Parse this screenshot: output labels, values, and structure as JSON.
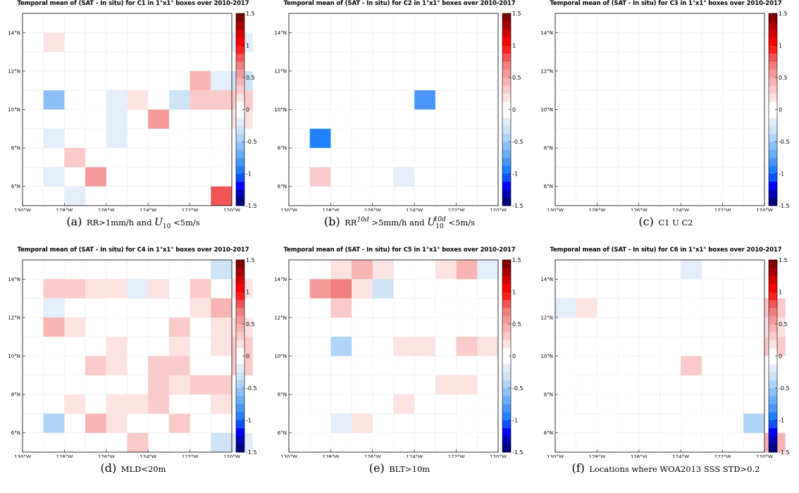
{
  "colorbar": {
    "ticks": [
      "1.5",
      "1",
      "0.5",
      "0",
      "-0.5",
      "-1",
      "-1.5"
    ],
    "range": [
      -1.5,
      1.5
    ],
    "colors_neg": [
      "#00007f",
      "#0000b3",
      "#0000ff",
      "#1050ff",
      "#2080ff",
      "#4a96f7",
      "#6aaef7",
      "#8cc0f7",
      "#b0d4f7",
      "#cfe3f7",
      "#e3eefa",
      "#ffffff"
    ],
    "colors_pos": [
      "#ffffff",
      "#fde2e2",
      "#fbcaca",
      "#f8b3b3",
      "#f59a9a",
      "#f27f7f",
      "#f05555",
      "#ff2020",
      "#ff0000",
      "#d40000",
      "#a80000",
      "#800000"
    ]
  },
  "chart_data": [
    {
      "type": "heatmap",
      "title": "Temporal mean of (SAT - In situ) for C1 in 1°x1° boxes over 2010-2017",
      "caption_label": "(a)",
      "caption_text": "RR>1mm/h and U10 <5m/s",
      "xticks": [
        "130°W",
        "128°W",
        "126°W",
        "124°W",
        "122°W",
        "120°W"
      ],
      "yticks": [
        "14°N",
        "12°N",
        "10°N",
        "8°N",
        "6°N"
      ],
      "xlim": [
        -130,
        -120
      ],
      "ylim": [
        5,
        15
      ],
      "cells": [
        [
          -129,
          13,
          0.15
        ],
        [
          -120,
          13,
          -0.15
        ],
        [
          -122,
          11,
          0.45
        ],
        [
          -121,
          11,
          -0.15
        ],
        [
          -120,
          11,
          -0.35
        ],
        [
          -129,
          10,
          -0.55
        ],
        [
          -126,
          10,
          -0.15
        ],
        [
          -125,
          10,
          0.15
        ],
        [
          -124,
          10,
          -0.1
        ],
        [
          -123,
          10,
          -0.35
        ],
        [
          -122,
          10,
          0.3
        ],
        [
          -121,
          10,
          0.3
        ],
        [
          -120,
          10,
          0.3
        ],
        [
          -127,
          9,
          -0.1
        ],
        [
          -126,
          9,
          -0.25
        ],
        [
          -124,
          9,
          0.5
        ],
        [
          -120,
          9,
          0.15
        ],
        [
          -129,
          8,
          -0.15
        ],
        [
          -126,
          8,
          -0.25
        ],
        [
          -123,
          8,
          -0.1
        ],
        [
          -128,
          7,
          0.3
        ],
        [
          -126,
          7,
          -0.1
        ],
        [
          -121,
          7,
          -0.1
        ],
        [
          -129,
          6,
          -0.15
        ],
        [
          -127,
          6,
          0.6
        ],
        [
          -128,
          5,
          -0.15
        ],
        [
          -121,
          5,
          0.85
        ]
      ]
    },
    {
      "type": "heatmap",
      "title": "Temporal mean of (SAT - In situ) for C2 in 1°x1° boxes over 2010-2017",
      "caption_label": "(b)",
      "caption_text": "RR10d >5mm/h and U1010d <5m/s",
      "xticks": [
        "130°W",
        "128°W",
        "126°W",
        "124°W",
        "122°W",
        "120°W"
      ],
      "yticks": [
        "14°N",
        "12°N",
        "10°N",
        "8°N",
        "6°N"
      ],
      "xlim": [
        -130,
        -120
      ],
      "ylim": [
        5,
        15
      ],
      "cells": [
        [
          -124,
          10,
          -0.8
        ],
        [
          -128,
          9,
          -0.1
        ],
        [
          -129,
          8,
          -1.0
        ],
        [
          -129,
          6,
          0.25
        ],
        [
          -125,
          6,
          -0.15
        ],
        [
          -127,
          5,
          0.12
        ]
      ]
    },
    {
      "type": "heatmap",
      "title": "Temporal mean of (SAT - In situ) for C3 in 1°x1° boxes over 2010-2017",
      "caption_label": "(c)",
      "caption_text": "C1 U C2",
      "xticks": [
        "130°W",
        "128°W",
        "126°W",
        "124°W",
        "122°W",
        "120°W"
      ],
      "yticks": [
        "14°N",
        "12°N",
        "10°N",
        "8°N",
        "6°N"
      ],
      "xlim": [
        -130,
        -120
      ],
      "ylim": [
        5,
        15
      ],
      "cells": []
    },
    {
      "type": "heatmap",
      "title": "Temporal mean of (SAT - In situ) for C4 in 1°x1° boxes over 2010-2017",
      "caption_label": "(d)",
      "caption_text": "MLD<20m",
      "xticks": [
        "130°W",
        "128°W",
        "126°W",
        "124°W",
        "122°W",
        "120°W"
      ],
      "yticks": [
        "14°N",
        "12°N",
        "10°N",
        "8°N",
        "6°N"
      ],
      "xlim": [
        -130,
        -120
      ],
      "ylim": [
        5,
        15
      ],
      "cells": [
        [
          -128,
          14,
          0.12
        ],
        [
          -123,
          14,
          -0.1
        ],
        [
          -121,
          14,
          -0.35
        ],
        [
          -120,
          14,
          0.12
        ],
        [
          -129,
          13,
          0.25
        ],
        [
          -128,
          13,
          0.25
        ],
        [
          -127,
          13,
          0.15
        ],
        [
          -126,
          13,
          0.15
        ],
        [
          -125,
          13,
          -0.15
        ],
        [
          -124,
          13,
          0.15
        ],
        [
          -122,
          13,
          0.3
        ],
        [
          -120,
          13,
          0.15
        ],
        [
          -129,
          12,
          -0.15
        ],
        [
          -126,
          12,
          0.12
        ],
        [
          -122,
          12,
          0.15
        ],
        [
          -121,
          12,
          0.45
        ],
        [
          -129,
          11,
          0.45
        ],
        [
          -128,
          11,
          0.15
        ],
        [
          -123,
          11,
          0.3
        ],
        [
          -121,
          11,
          0.15
        ],
        [
          -120,
          11,
          0.15
        ],
        [
          -129,
          10,
          -0.1
        ],
        [
          -126,
          10,
          0.15
        ],
        [
          -123,
          10,
          0.15
        ],
        [
          -121,
          10,
          0.15
        ],
        [
          -120,
          10,
          0.25
        ],
        [
          -127,
          9,
          0.3
        ],
        [
          -126,
          9,
          0.2
        ],
        [
          -124,
          9,
          0.3
        ],
        [
          -123,
          9,
          0.3
        ],
        [
          -122,
          9,
          -0.1
        ],
        [
          -121,
          9,
          -0.1
        ],
        [
          -120,
          9,
          0.3
        ],
        [
          -128,
          8,
          -0.12
        ],
        [
          -124,
          8,
          0.3
        ],
        [
          -123,
          8,
          0.2
        ],
        [
          -122,
          8,
          0.3
        ],
        [
          -121,
          8,
          0.3
        ],
        [
          -128,
          7,
          0.15
        ],
        [
          -126,
          7,
          0.15
        ],
        [
          -125,
          7,
          0.15
        ],
        [
          -124,
          7,
          0.3
        ],
        [
          -121,
          7,
          0.15
        ],
        [
          -120,
          7,
          -0.1
        ],
        [
          -129,
          6,
          -0.5
        ],
        [
          -127,
          6,
          0.45
        ],
        [
          -126,
          6,
          0.15
        ],
        [
          -123,
          6,
          0.3
        ],
        [
          -120,
          6,
          0.12
        ],
        [
          -129,
          5,
          0.12
        ],
        [
          -125,
          5,
          0.25
        ],
        [
          -121,
          5,
          -0.3
        ],
        [
          -120,
          5,
          -0.15
        ]
      ]
    },
    {
      "type": "heatmap",
      "title": "Temporal mean of (SAT - In situ) for C5 in 1°x1° boxes over 2010-2017",
      "caption_label": "(e)",
      "caption_text": "BLT>10m",
      "xticks": [
        "130°W",
        "128°W",
        "126°W",
        "124°W",
        "122°W",
        "120°W"
      ],
      "yticks": [
        "14°N",
        "12°N",
        "10°N",
        "8°N",
        "6°N"
      ],
      "xlim": [
        -130,
        -120
      ],
      "ylim": [
        5,
        15
      ],
      "cells": [
        [
          -128,
          14,
          0.15
        ],
        [
          -127,
          14,
          0.45
        ],
        [
          -126,
          14,
          0.15
        ],
        [
          -124,
          14,
          -0.12
        ],
        [
          -123,
          14,
          0.2
        ],
        [
          -122,
          14,
          0.45
        ],
        [
          -121,
          14,
          -0.15
        ],
        [
          -129,
          13,
          0.6
        ],
        [
          -128,
          13,
          0.7
        ],
        [
          -127,
          13,
          0.2
        ],
        [
          -126,
          13,
          -0.3
        ],
        [
          -123,
          13,
          -0.12
        ],
        [
          -128,
          12,
          0.3
        ],
        [
          -122,
          12,
          0.12
        ],
        [
          -123,
          11,
          0.12
        ],
        [
          -128,
          10,
          -0.4
        ],
        [
          -125,
          10,
          0.15
        ],
        [
          -124,
          10,
          0.15
        ],
        [
          -122,
          10,
          0.3
        ],
        [
          -121,
          10,
          0.2
        ],
        [
          -126,
          9,
          0.12
        ],
        [
          -123,
          8,
          0.15
        ],
        [
          -122,
          8,
          0.15
        ],
        [
          -125,
          7,
          0.15
        ],
        [
          -121,
          7,
          -0.12
        ],
        [
          -130,
          6,
          -0.12
        ],
        [
          -129,
          6,
          0.12
        ],
        [
          -128,
          6,
          -0.15
        ],
        [
          -127,
          6,
          0.15
        ],
        [
          -122,
          6,
          -0.1
        ],
        [
          -128,
          5,
          0.12
        ],
        [
          -126,
          5,
          0.12
        ]
      ]
    },
    {
      "type": "heatmap",
      "title": "Temporal mean of (SAT - In situ) for C6 in 1°x1° boxes over 2010-2017",
      "caption_label": "(f)",
      "caption_text": "Locations where WOA2013 SSS STD>0.2",
      "xticks": [
        "130°W",
        "128°W",
        "126°W",
        "124°W",
        "122°W",
        "120°W"
      ],
      "yticks": [
        "14°N",
        "12°N",
        "10°N",
        "8°N",
        "6°N"
      ],
      "xlim": [
        -130,
        -120
      ],
      "ylim": [
        5,
        15
      ],
      "cells": [
        [
          -124,
          14,
          -0.25
        ],
        [
          -123,
          14,
          -0.1
        ],
        [
          -121,
          14,
          -0.12
        ],
        [
          -130,
          12,
          -0.15
        ],
        [
          -129,
          12,
          0.15
        ],
        [
          -124,
          12,
          -0.1
        ],
        [
          -120,
          12,
          0.35
        ],
        [
          -120,
          11,
          0.2
        ],
        [
          -128,
          10,
          -0.1
        ],
        [
          -125,
          10,
          0.12
        ],
        [
          -121,
          10,
          -0.12
        ],
        [
          -120,
          10,
          0.3
        ],
        [
          -130,
          9,
          -0.1
        ],
        [
          -125,
          9,
          0.12
        ],
        [
          -124,
          9,
          0.35
        ],
        [
          -130,
          8,
          -0.1
        ],
        [
          -128,
          8,
          0.12
        ],
        [
          -127,
          8,
          0.12
        ],
        [
          -120,
          7,
          -0.12
        ],
        [
          -130,
          6,
          0.12
        ],
        [
          -128,
          6,
          -0.1
        ],
        [
          -124,
          6,
          -0.1
        ],
        [
          -123,
          6,
          -0.1
        ],
        [
          -122,
          6,
          -0.1
        ],
        [
          -121,
          6,
          -0.4
        ],
        [
          -120,
          6,
          -0.12
        ],
        [
          -128,
          5,
          -0.1
        ],
        [
          -125,
          5,
          -0.1
        ],
        [
          -120,
          5,
          0.45
        ]
      ]
    }
  ]
}
